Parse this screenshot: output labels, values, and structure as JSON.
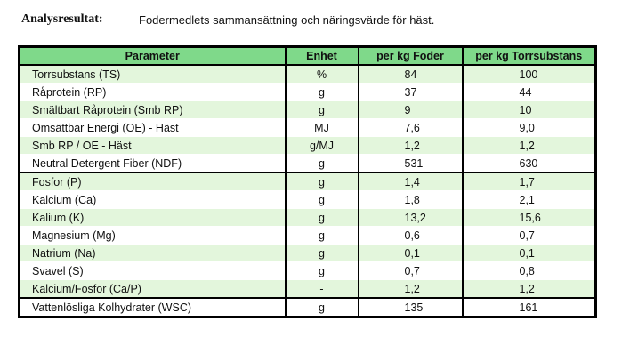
{
  "heading": {
    "label": "Analysresultat:",
    "text": "Fodermedlets sammansättning och näringsvärde för häst."
  },
  "table": {
    "headers": [
      "Parameter",
      "Enhet",
      "per kg Foder",
      "per kg Torrsubstans"
    ],
    "rows": [
      {
        "parameter": "Torrsubstans  (TS)",
        "unit": "%",
        "per_kg_foder": "84",
        "per_kg_ts": "100"
      },
      {
        "parameter": "Råprotein  (RP)",
        "unit": "g",
        "per_kg_foder": "37",
        "per_kg_ts": "44"
      },
      {
        "parameter": "Smältbart Råprotein  (Smb RP)",
        "unit": "g",
        "per_kg_foder": "9",
        "per_kg_ts": "10"
      },
      {
        "parameter": "Omsättbar Energi (OE) - Häst",
        "unit": "MJ",
        "per_kg_foder": "7,6",
        "per_kg_ts": "9,0"
      },
      {
        "parameter": "Smb RP / OE - Häst",
        "unit": "g/MJ",
        "per_kg_foder": "1,2",
        "per_kg_ts": "1,2"
      },
      {
        "parameter": "Neutral Detergent Fiber  (NDF)",
        "unit": "g",
        "per_kg_foder": "531",
        "per_kg_ts": "630"
      },
      {
        "parameter": "Fosfor  (P)",
        "unit": "g",
        "per_kg_foder": "1,4",
        "per_kg_ts": "1,7"
      },
      {
        "parameter": "Kalcium  (Ca)",
        "unit": "g",
        "per_kg_foder": "1,8",
        "per_kg_ts": "2,1"
      },
      {
        "parameter": "Kalium  (K)",
        "unit": "g",
        "per_kg_foder": "13,2",
        "per_kg_ts": "15,6"
      },
      {
        "parameter": "Magnesium  (Mg)",
        "unit": "g",
        "per_kg_foder": "0,6",
        "per_kg_ts": "0,7"
      },
      {
        "parameter": "Natrium  (Na)",
        "unit": "g",
        "per_kg_foder": "0,1",
        "per_kg_ts": "0,1"
      },
      {
        "parameter": "Svavel  (S)",
        "unit": "g",
        "per_kg_foder": "0,7",
        "per_kg_ts": "0,8"
      },
      {
        "parameter": "Kalcium/Fosfor  (Ca/P)",
        "unit": "-",
        "per_kg_foder": "1,2",
        "per_kg_ts": "1,2"
      },
      {
        "parameter": "Vattenlösliga Kolhydrater (WSC)",
        "unit": "g",
        "per_kg_foder": "135",
        "per_kg_ts": "161"
      }
    ]
  },
  "colors": {
    "header_bg": "#7fd98a",
    "row_shade": "#e3f6dc",
    "border": "#000000"
  }
}
